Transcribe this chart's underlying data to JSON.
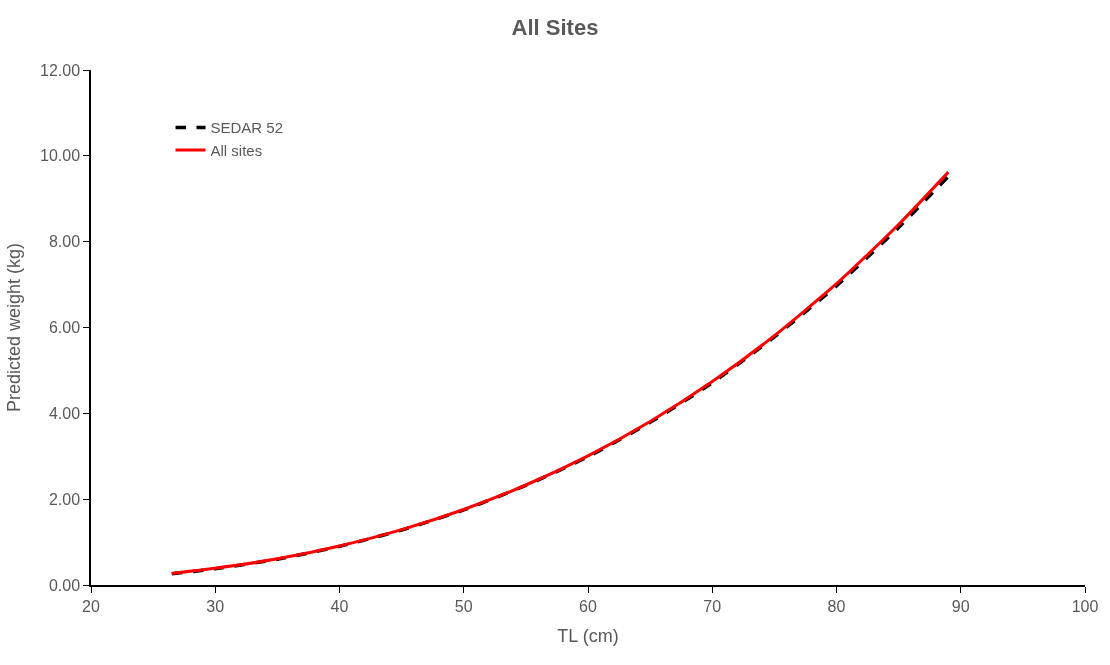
{
  "chart_data": {
    "type": "line",
    "title": "All Sites",
    "xlabel": "TL (cm)",
    "ylabel": "Predicted weight (kg)",
    "xlim": [
      20,
      100
    ],
    "xticks": [
      20,
      30,
      40,
      50,
      60,
      70,
      80,
      90,
      100
    ],
    "ylim": [
      0,
      12
    ],
    "yticks": [
      {
        "value": 0,
        "label": "0.00"
      },
      {
        "value": 2,
        "label": "2.00"
      },
      {
        "value": 4,
        "label": "4.00"
      },
      {
        "value": 6,
        "label": "6.00"
      },
      {
        "value": 8,
        "label": "8.00"
      },
      {
        "value": 10,
        "label": "10.00"
      },
      {
        "value": 12,
        "label": "12.00"
      }
    ],
    "legend": "top left",
    "marker": "none",
    "x": [
      26.5,
      30,
      35,
      40,
      45,
      50,
      55,
      60,
      65,
      70,
      75,
      80,
      85,
      89
    ],
    "series": [
      {
        "name": "SEDAR 52",
        "color": "#000000",
        "line_style": "dashed",
        "values": [
          0.26,
          0.38,
          0.6,
          0.9,
          1.28,
          1.75,
          2.32,
          2.99,
          3.79,
          4.71,
          5.78,
          6.97,
          8.33,
          9.52
        ]
      },
      {
        "name": "All sites",
        "color": "#ff0000",
        "line_style": "solid",
        "values": [
          0.27,
          0.39,
          0.61,
          0.91,
          1.29,
          1.76,
          2.33,
          3.01,
          3.81,
          4.74,
          5.81,
          7.02,
          8.4,
          9.62
        ]
      }
    ]
  }
}
